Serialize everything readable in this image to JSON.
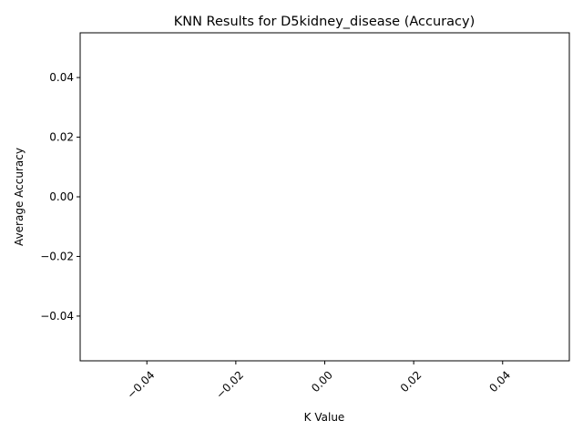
{
  "chart_data": {
    "type": "line",
    "title": "KNN Results for D5kidney_disease (Accuracy)",
    "xlabel": "K Value",
    "ylabel": "Average Accuracy",
    "x": [],
    "series": [
      {
        "values": []
      }
    ],
    "xlim": [
      -0.055,
      0.055
    ],
    "ylim": [
      -0.055,
      0.055
    ],
    "xticks": [
      -0.04,
      -0.02,
      0.0,
      0.02,
      0.04
    ],
    "yticks": [
      -0.04,
      -0.02,
      0.0,
      0.02,
      0.04
    ],
    "xtick_labels": [
      "−0.04",
      "−0.02",
      "0.00",
      "0.02",
      "0.04"
    ],
    "ytick_labels": [
      "−0.04",
      "−0.02",
      "0.00",
      "0.02",
      "0.04"
    ],
    "xtick_rotation_deg": 45,
    "grid": false,
    "legend": false
  }
}
